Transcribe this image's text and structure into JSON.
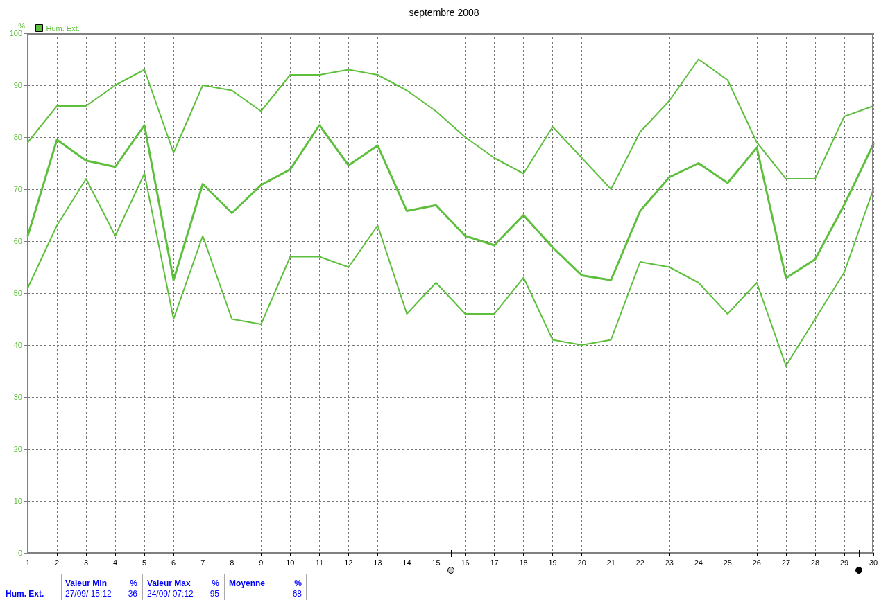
{
  "chart_data": {
    "type": "line",
    "title": "septembre 2008",
    "ylabel": "%",
    "x": [
      1,
      2,
      3,
      4,
      5,
      6,
      7,
      8,
      9,
      10,
      11,
      12,
      13,
      14,
      15,
      16,
      17,
      18,
      19,
      20,
      21,
      22,
      23,
      24,
      25,
      26,
      27,
      28,
      29,
      30
    ],
    "series": [
      {
        "color": "#5dbf3c",
        "values": [
          79,
          86,
          86,
          90,
          93,
          77,
          90,
          89,
          85,
          92,
          92,
          93,
          92,
          89,
          85,
          80,
          76,
          73,
          82,
          76,
          70,
          81,
          87,
          95,
          91,
          79,
          72,
          72,
          84,
          86
        ]
      },
      {
        "name": "Hum. Ext.",
        "color": "#5dbf3c",
        "values": [
          61,
          79.5,
          75.5,
          74.3,
          82.3,
          52.5,
          71,
          65.4,
          70.8,
          73.8,
          82.3,
          74.6,
          78.4,
          65.8,
          66.9,
          61,
          59.2,
          65,
          58.8,
          53.4,
          52.5,
          65.8,
          72.3,
          75,
          71.2,
          78,
          52.9,
          56.5,
          67,
          78.7
        ]
      },
      {
        "color": "#5dbf3c",
        "values": [
          51,
          63,
          72,
          61,
          73,
          45,
          61,
          45,
          44,
          57,
          57,
          55,
          63,
          46,
          52,
          46,
          46,
          53,
          41,
          40,
          41,
          56,
          55,
          52,
          46,
          52,
          36,
          45,
          54,
          70
        ]
      }
    ],
    "xlim": [
      1,
      30
    ],
    "xticks": [
      1,
      2,
      3,
      4,
      5,
      6,
      7,
      8,
      9,
      10,
      11,
      12,
      13,
      14,
      15,
      16,
      17,
      18,
      19,
      20,
      21,
      22,
      23,
      24,
      25,
      26,
      27,
      28,
      29,
      30
    ],
    "ylim": [
      0,
      100
    ],
    "yticks": [
      0,
      10,
      20,
      30,
      40,
      50,
      60,
      70,
      80,
      90,
      100
    ],
    "grid": true,
    "legend": "top left",
    "marker": "none",
    "line_style": "solid",
    "annotations": [
      "Hum. Ext.",
      "Valeur Min",
      "%",
      "27/09/ 15:12",
      "36",
      "Valeur Max",
      "%",
      "24/09/ 07:12",
      "95",
      "Moyenne",
      "%",
      "68"
    ]
  }
}
